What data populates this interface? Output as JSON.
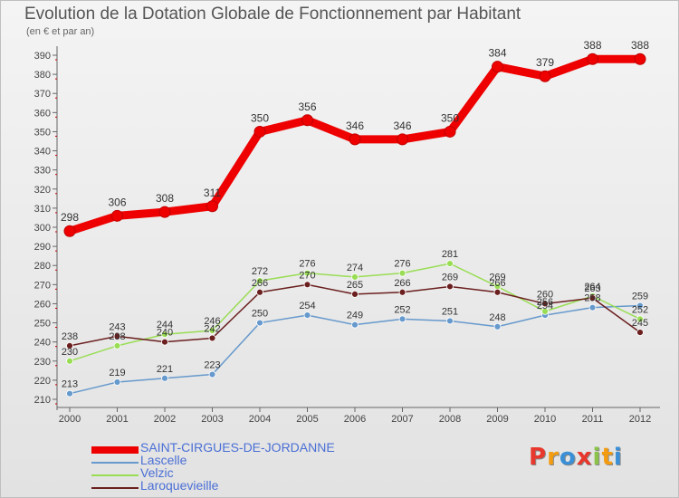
{
  "title": "Evolution de la Dotation Globale de Fonctionnement par Habitant",
  "subtitle": "(en € et par an)",
  "logo_text": "Proxiti",
  "logo_colors": [
    "#e8372c",
    "#f39c12",
    "#3a8fd6",
    "#e8372c",
    "#8bc34a",
    "#f39c12",
    "#3a8fd6"
  ],
  "chart_data": {
    "type": "line",
    "title": "Evolution de la Dotation Globale de Fonctionnement par Habitant",
    "subtitle": "(en € et par an)",
    "xlabel": "",
    "ylabel": "",
    "x": [
      "2000",
      "2001",
      "2002",
      "2003",
      "2004",
      "2005",
      "2006",
      "2007",
      "2008",
      "2009",
      "2010",
      "2011",
      "2012"
    ],
    "ylim": [
      210,
      390
    ],
    "yticks": [
      210,
      220,
      230,
      240,
      250,
      260,
      270,
      280,
      290,
      300,
      310,
      320,
      330,
      340,
      350,
      360,
      370,
      380,
      390
    ],
    "grid": false,
    "legend": "bottom-left",
    "series": [
      {
        "name": "SAINT-CIRGUES-DE-JORDANNE",
        "color": "#ee0000",
        "values": [
          298,
          306,
          308,
          311,
          350,
          356,
          346,
          346,
          350,
          384,
          379,
          388,
          388
        ]
      },
      {
        "name": "Lascelle",
        "color": "#6699cc",
        "values": [
          213,
          219,
          221,
          223,
          250,
          254,
          249,
          252,
          251,
          248,
          254,
          258,
          259
        ]
      },
      {
        "name": "Velzic",
        "color": "#99dd55",
        "values": [
          230,
          238,
          244,
          246,
          272,
          276,
          274,
          276,
          281,
          269,
          256,
          264,
          252
        ]
      },
      {
        "name": "Laroquevieille",
        "color": "#6b1f1f",
        "values": [
          238,
          243,
          240,
          242,
          266,
          270,
          265,
          266,
          269,
          266,
          260,
          263,
          245
        ]
      }
    ]
  }
}
